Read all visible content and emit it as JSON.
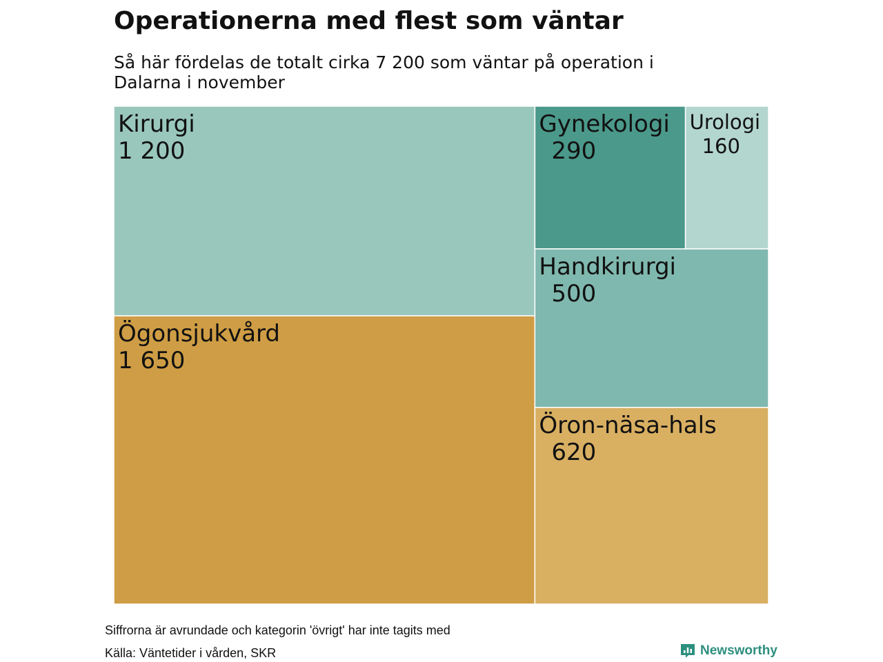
{
  "header": {
    "title": "Operationerna med flest som väntar",
    "subtitle": "Så här fördelas de totalt cirka 7 200 som väntar på operation i Dalarna i november"
  },
  "chart_data": {
    "type": "treemap",
    "title": "Operationerna med flest som väntar",
    "subtitle": "Så här fördelas de totalt cirka 7 200 som väntar på operation i Dalarna i november",
    "groups": [
      {
        "color": "#cf9d45",
        "items": [
          {
            "label": "Ögonsjukvård",
            "value": 1650,
            "value_label": "1 650",
            "color": "#cf9d45"
          },
          {
            "label": "Öron-näsa-hals",
            "value": 620,
            "value_label": "620",
            "color": "#d9af62"
          }
        ]
      },
      {
        "color": "#7fb8ae",
        "items": [
          {
            "label": "Kirurgi",
            "value": 1200,
            "value_label": "1 200",
            "color": "#9ac7bc"
          },
          {
            "label": "Handkirurgi",
            "value": 500,
            "value_label": "500",
            "color": "#7fb8ae"
          },
          {
            "label": "Gynekologi",
            "value": 290,
            "value_label": "290",
            "color": "#4b998a"
          },
          {
            "label": "Urologi",
            "value": 160,
            "value_label": "160",
            "color": "#b3d6cf"
          }
        ]
      }
    ]
  },
  "footer": {
    "note": "Siffrorna är avrundade och kategorin 'övrigt' har inte tagits med",
    "source": "Källa: Väntetider i vården, SKR",
    "brand": "Newsworthy",
    "brand_icon": "newsworthy-logo-icon",
    "brand_color": "#2e8f7f"
  }
}
